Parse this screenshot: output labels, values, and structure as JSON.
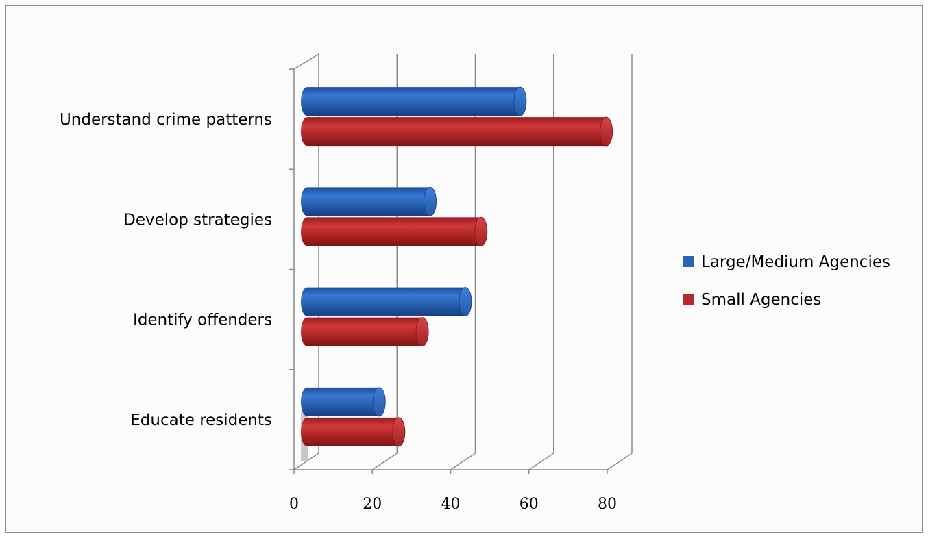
{
  "chart_data": {
    "type": "bar",
    "orientation": "horizontal",
    "style": "3d-cylinder",
    "categories": [
      "Understand crime patterns",
      "Develop strategies",
      "Identify offenders",
      "Educate residents"
    ],
    "series": [
      {
        "name": "Large/Medium Agencies",
        "color": "#2b63b5",
        "values": [
          56,
          33,
          42,
          20
        ]
      },
      {
        "name": "Small Agencies",
        "color": "#b8282a",
        "values": [
          78,
          46,
          31,
          25
        ]
      }
    ],
    "xaxis": {
      "ticks": [
        "0",
        "20",
        "40",
        "60",
        "80"
      ],
      "xlim": [
        0,
        80
      ]
    },
    "grid": true,
    "legend": {
      "position": "right"
    },
    "title": "",
    "xlabel": "",
    "ylabel": ""
  }
}
